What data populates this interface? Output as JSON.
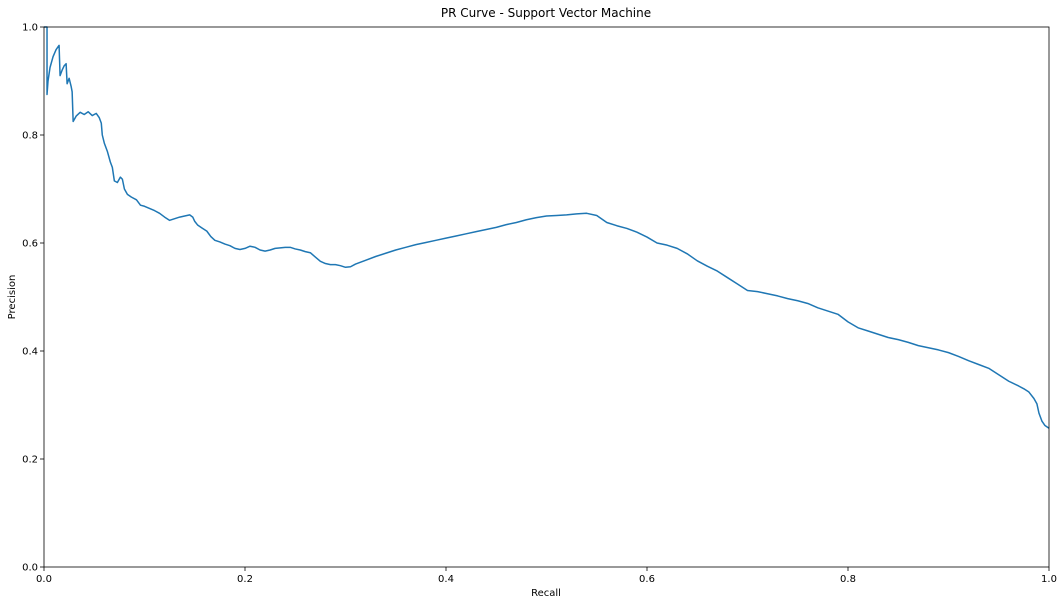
{
  "chart_data": {
    "type": "line",
    "title": "PR Curve - Support Vector Machine",
    "xlabel": "Recall",
    "ylabel": "Precision",
    "xlim": [
      0,
      1
    ],
    "ylim": [
      0,
      1
    ],
    "grid": false,
    "xticks": [
      {
        "value": 0.0,
        "label": "0.0"
      },
      {
        "value": 0.2,
        "label": "0.2"
      },
      {
        "value": 0.4,
        "label": "0.4"
      },
      {
        "value": 0.6,
        "label": "0.6"
      },
      {
        "value": 0.8,
        "label": "0.8"
      },
      {
        "value": 1.0,
        "label": "1.0"
      }
    ],
    "yticks": [
      {
        "value": 0.0,
        "label": "0.0"
      },
      {
        "value": 0.2,
        "label": "0.2"
      },
      {
        "value": 0.4,
        "label": "0.4"
      },
      {
        "value": 0.6,
        "label": "0.6"
      },
      {
        "value": 0.8,
        "label": "0.8"
      },
      {
        "value": 1.0,
        "label": "1.0"
      }
    ],
    "series": [
      {
        "color": "#1f77b4",
        "points": [
          [
            0.0,
            1.0
          ],
          [
            0.003,
            1.0
          ],
          [
            0.003,
            0.875
          ],
          [
            0.004,
            0.9
          ],
          [
            0.006,
            0.925
          ],
          [
            0.009,
            0.945
          ],
          [
            0.012,
            0.958
          ],
          [
            0.015,
            0.966
          ],
          [
            0.016,
            0.91
          ],
          [
            0.018,
            0.92
          ],
          [
            0.02,
            0.928
          ],
          [
            0.022,
            0.932
          ],
          [
            0.023,
            0.895
          ],
          [
            0.025,
            0.905
          ],
          [
            0.027,
            0.89
          ],
          [
            0.028,
            0.88
          ],
          [
            0.029,
            0.825
          ],
          [
            0.032,
            0.835
          ],
          [
            0.036,
            0.842
          ],
          [
            0.04,
            0.838
          ],
          [
            0.044,
            0.843
          ],
          [
            0.048,
            0.836
          ],
          [
            0.052,
            0.84
          ],
          [
            0.055,
            0.832
          ],
          [
            0.057,
            0.822
          ],
          [
            0.058,
            0.8
          ],
          [
            0.06,
            0.785
          ],
          [
            0.063,
            0.77
          ],
          [
            0.066,
            0.75
          ],
          [
            0.068,
            0.74
          ],
          [
            0.07,
            0.715
          ],
          [
            0.073,
            0.712
          ],
          [
            0.076,
            0.722
          ],
          [
            0.078,
            0.718
          ],
          [
            0.08,
            0.7
          ],
          [
            0.083,
            0.69
          ],
          [
            0.087,
            0.685
          ],
          [
            0.092,
            0.68
          ],
          [
            0.096,
            0.67
          ],
          [
            0.1,
            0.668
          ],
          [
            0.105,
            0.664
          ],
          [
            0.11,
            0.66
          ],
          [
            0.115,
            0.655
          ],
          [
            0.12,
            0.648
          ],
          [
            0.125,
            0.642
          ],
          [
            0.13,
            0.645
          ],
          [
            0.135,
            0.648
          ],
          [
            0.14,
            0.65
          ],
          [
            0.145,
            0.652
          ],
          [
            0.148,
            0.648
          ],
          [
            0.15,
            0.64
          ],
          [
            0.153,
            0.633
          ],
          [
            0.157,
            0.628
          ],
          [
            0.162,
            0.622
          ],
          [
            0.166,
            0.612
          ],
          [
            0.17,
            0.605
          ],
          [
            0.175,
            0.602
          ],
          [
            0.18,
            0.598
          ],
          [
            0.185,
            0.595
          ],
          [
            0.19,
            0.59
          ],
          [
            0.195,
            0.588
          ],
          [
            0.2,
            0.59
          ],
          [
            0.205,
            0.594
          ],
          [
            0.21,
            0.592
          ],
          [
            0.215,
            0.587
          ],
          [
            0.22,
            0.585
          ],
          [
            0.225,
            0.587
          ],
          [
            0.23,
            0.59
          ],
          [
            0.235,
            0.591
          ],
          [
            0.24,
            0.592
          ],
          [
            0.245,
            0.592
          ],
          [
            0.25,
            0.589
          ],
          [
            0.255,
            0.587
          ],
          [
            0.26,
            0.584
          ],
          [
            0.265,
            0.582
          ],
          [
            0.27,
            0.574
          ],
          [
            0.275,
            0.566
          ],
          [
            0.28,
            0.562
          ],
          [
            0.285,
            0.56
          ],
          [
            0.29,
            0.56
          ],
          [
            0.295,
            0.558
          ],
          [
            0.3,
            0.555
          ],
          [
            0.305,
            0.556
          ],
          [
            0.31,
            0.561
          ],
          [
            0.32,
            0.568
          ],
          [
            0.33,
            0.575
          ],
          [
            0.34,
            0.581
          ],
          [
            0.35,
            0.587
          ],
          [
            0.36,
            0.592
          ],
          [
            0.37,
            0.597
          ],
          [
            0.38,
            0.601
          ],
          [
            0.39,
            0.605
          ],
          [
            0.4,
            0.609
          ],
          [
            0.41,
            0.613
          ],
          [
            0.42,
            0.617
          ],
          [
            0.43,
            0.621
          ],
          [
            0.44,
            0.625
          ],
          [
            0.45,
            0.629
          ],
          [
            0.46,
            0.634
          ],
          [
            0.47,
            0.638
          ],
          [
            0.48,
            0.643
          ],
          [
            0.49,
            0.647
          ],
          [
            0.5,
            0.65
          ],
          [
            0.51,
            0.651
          ],
          [
            0.52,
            0.652
          ],
          [
            0.53,
            0.654
          ],
          [
            0.54,
            0.655
          ],
          [
            0.55,
            0.651
          ],
          [
            0.56,
            0.638
          ],
          [
            0.57,
            0.632
          ],
          [
            0.58,
            0.627
          ],
          [
            0.59,
            0.62
          ],
          [
            0.6,
            0.611
          ],
          [
            0.61,
            0.6
          ],
          [
            0.62,
            0.596
          ],
          [
            0.63,
            0.59
          ],
          [
            0.64,
            0.58
          ],
          [
            0.65,
            0.567
          ],
          [
            0.66,
            0.557
          ],
          [
            0.67,
            0.548
          ],
          [
            0.68,
            0.536
          ],
          [
            0.69,
            0.524
          ],
          [
            0.7,
            0.512
          ],
          [
            0.71,
            0.51
          ],
          [
            0.72,
            0.506
          ],
          [
            0.73,
            0.502
          ],
          [
            0.74,
            0.497
          ],
          [
            0.75,
            0.493
          ],
          [
            0.76,
            0.488
          ],
          [
            0.77,
            0.48
          ],
          [
            0.78,
            0.474
          ],
          [
            0.79,
            0.468
          ],
          [
            0.8,
            0.454
          ],
          [
            0.81,
            0.443
          ],
          [
            0.82,
            0.437
          ],
          [
            0.83,
            0.431
          ],
          [
            0.84,
            0.425
          ],
          [
            0.85,
            0.421
          ],
          [
            0.86,
            0.416
          ],
          [
            0.87,
            0.41
          ],
          [
            0.88,
            0.406
          ],
          [
            0.89,
            0.402
          ],
          [
            0.9,
            0.397
          ],
          [
            0.91,
            0.39
          ],
          [
            0.92,
            0.382
          ],
          [
            0.93,
            0.375
          ],
          [
            0.94,
            0.368
          ],
          [
            0.95,
            0.356
          ],
          [
            0.96,
            0.344
          ],
          [
            0.97,
            0.335
          ],
          [
            0.975,
            0.33
          ],
          [
            0.98,
            0.324
          ],
          [
            0.985,
            0.312
          ],
          [
            0.988,
            0.302
          ],
          [
            0.99,
            0.285
          ],
          [
            0.993,
            0.27
          ],
          [
            0.996,
            0.262
          ],
          [
            1.0,
            0.257
          ]
        ]
      }
    ]
  }
}
